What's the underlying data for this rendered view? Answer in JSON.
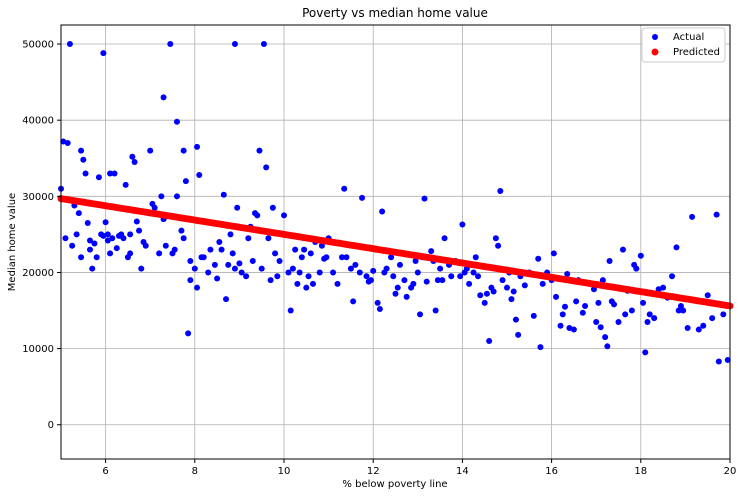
{
  "chart_data": {
    "type": "scatter",
    "title": "Poverty vs median home value",
    "xlabel": "% below poverty line",
    "ylabel": "Median home value",
    "xlim": [
      5,
      20
    ],
    "ylim": [
      -4500,
      52500
    ],
    "xticks": [
      6,
      8,
      10,
      12,
      14,
      16,
      18,
      20
    ],
    "yticks": [
      0,
      10000,
      20000,
      30000,
      40000,
      50000
    ],
    "grid": true,
    "legend_position": "top-right",
    "series": [
      {
        "name": "Actual",
        "color": "#0000ff",
        "points": [
          [
            5.0,
            31000
          ],
          [
            5.05,
            37200
          ],
          [
            5.1,
            24500
          ],
          [
            5.15,
            37000
          ],
          [
            5.2,
            50000
          ],
          [
            5.25,
            23500
          ],
          [
            5.3,
            28800
          ],
          [
            5.35,
            25000
          ],
          [
            5.4,
            27800
          ],
          [
            5.45,
            36000
          ],
          [
            5.45,
            22000
          ],
          [
            5.5,
            34800
          ],
          [
            5.55,
            33000
          ],
          [
            5.6,
            26500
          ],
          [
            5.65,
            24200
          ],
          [
            5.65,
            23000
          ],
          [
            5.7,
            20500
          ],
          [
            5.75,
            23800
          ],
          [
            5.8,
            22000
          ],
          [
            5.85,
            32500
          ],
          [
            5.9,
            25000
          ],
          [
            5.95,
            24800
          ],
          [
            6.0,
            26600
          ],
          [
            6.05,
            25000
          ],
          [
            6.1,
            22500
          ],
          [
            5.95,
            48800
          ],
          [
            6.05,
            24200
          ],
          [
            6.1,
            33000
          ],
          [
            6.15,
            24500
          ],
          [
            6.2,
            33000
          ],
          [
            6.25,
            23200
          ],
          [
            6.3,
            24800
          ],
          [
            6.35,
            25000
          ],
          [
            6.4,
            24500
          ],
          [
            6.45,
            31500
          ],
          [
            6.5,
            22000
          ],
          [
            6.55,
            22500
          ],
          [
            6.55,
            25000
          ],
          [
            6.6,
            35200
          ],
          [
            6.65,
            34500
          ],
          [
            6.7,
            26700
          ],
          [
            6.75,
            25500
          ],
          [
            6.8,
            20500
          ],
          [
            6.85,
            24000
          ],
          [
            6.9,
            23500
          ],
          [
            7.0,
            36000
          ],
          [
            7.05,
            29000
          ],
          [
            7.1,
            28500
          ],
          [
            7.2,
            22500
          ],
          [
            7.25,
            30000
          ],
          [
            7.3,
            27000
          ],
          [
            7.35,
            23500
          ],
          [
            7.3,
            43000
          ],
          [
            7.45,
            50000
          ],
          [
            7.5,
            22500
          ],
          [
            7.55,
            23000
          ],
          [
            7.6,
            39800
          ],
          [
            7.6,
            30000
          ],
          [
            7.7,
            25500
          ],
          [
            7.75,
            36000
          ],
          [
            7.75,
            24500
          ],
          [
            7.8,
            32000
          ],
          [
            7.85,
            12000
          ],
          [
            7.9,
            21500
          ],
          [
            7.9,
            19000
          ],
          [
            8.0,
            20500
          ],
          [
            8.05,
            18000
          ],
          [
            8.05,
            36500
          ],
          [
            8.1,
            32800
          ],
          [
            8.15,
            22000
          ],
          [
            8.2,
            22000
          ],
          [
            8.3,
            20000
          ],
          [
            8.35,
            23000
          ],
          [
            8.45,
            21000
          ],
          [
            8.5,
            19200
          ],
          [
            8.55,
            24000
          ],
          [
            8.6,
            23000
          ],
          [
            8.65,
            30200
          ],
          [
            8.7,
            16500
          ],
          [
            8.75,
            21000
          ],
          [
            8.8,
            25000
          ],
          [
            8.85,
            22500
          ],
          [
            8.9,
            20500
          ],
          [
            8.9,
            50000
          ],
          [
            8.95,
            28500
          ],
          [
            9.0,
            21200
          ],
          [
            9.05,
            20000
          ],
          [
            9.15,
            19500
          ],
          [
            9.2,
            24500
          ],
          [
            9.25,
            26000
          ],
          [
            9.3,
            21500
          ],
          [
            9.35,
            27800
          ],
          [
            9.4,
            27500
          ],
          [
            9.45,
            36000
          ],
          [
            9.5,
            20500
          ],
          [
            9.55,
            50000
          ],
          [
            9.6,
            33800
          ],
          [
            9.65,
            24500
          ],
          [
            9.7,
            19000
          ],
          [
            9.75,
            28500
          ],
          [
            9.8,
            22500
          ],
          [
            9.85,
            19500
          ],
          [
            9.9,
            21500
          ],
          [
            10.0,
            27500
          ],
          [
            10.1,
            20000
          ],
          [
            10.15,
            15000
          ],
          [
            10.2,
            20500
          ],
          [
            10.25,
            23000
          ],
          [
            10.3,
            18500
          ],
          [
            10.35,
            20000
          ],
          [
            10.4,
            22000
          ],
          [
            10.45,
            23000
          ],
          [
            10.5,
            18000
          ],
          [
            10.55,
            19500
          ],
          [
            10.6,
            22500
          ],
          [
            10.65,
            18500
          ],
          [
            10.7,
            24000
          ],
          [
            10.8,
            20000
          ],
          [
            10.85,
            23500
          ],
          [
            10.9,
            21800
          ],
          [
            10.95,
            22000
          ],
          [
            11.0,
            24500
          ],
          [
            11.1,
            20000
          ],
          [
            11.2,
            18500
          ],
          [
            11.3,
            22000
          ],
          [
            11.35,
            31000
          ],
          [
            11.4,
            22000
          ],
          [
            11.5,
            20500
          ],
          [
            11.55,
            16200
          ],
          [
            11.6,
            21000
          ],
          [
            11.7,
            20000
          ],
          [
            11.75,
            29800
          ],
          [
            11.85,
            19500
          ],
          [
            11.9,
            18800
          ],
          [
            11.95,
            19000
          ],
          [
            12.0,
            20200
          ],
          [
            12.05,
            23000
          ],
          [
            12.1,
            16000
          ],
          [
            12.15,
            15200
          ],
          [
            12.2,
            28000
          ],
          [
            12.25,
            20000
          ],
          [
            12.3,
            20500
          ],
          [
            12.4,
            22000
          ],
          [
            12.45,
            19500
          ],
          [
            12.5,
            17200
          ],
          [
            12.55,
            18000
          ],
          [
            12.6,
            21000
          ],
          [
            12.7,
            19000
          ],
          [
            12.75,
            16800
          ],
          [
            12.85,
            18000
          ],
          [
            12.9,
            18500
          ],
          [
            12.95,
            21500
          ],
          [
            13.0,
            20000
          ],
          [
            13.05,
            14500
          ],
          [
            13.1,
            22000
          ],
          [
            13.15,
            29700
          ],
          [
            13.2,
            18800
          ],
          [
            13.3,
            22800
          ],
          [
            13.35,
            21500
          ],
          [
            13.4,
            15000
          ],
          [
            13.45,
            19000
          ],
          [
            13.5,
            20500
          ],
          [
            13.55,
            19000
          ],
          [
            13.6,
            24500
          ],
          [
            13.7,
            21000
          ],
          [
            13.75,
            19500
          ],
          [
            13.85,
            21500
          ],
          [
            13.95,
            19500
          ],
          [
            14.0,
            26300
          ],
          [
            14.05,
            20000
          ],
          [
            14.1,
            20500
          ],
          [
            14.15,
            18500
          ],
          [
            14.2,
            21000
          ],
          [
            14.25,
            20000
          ],
          [
            14.3,
            22000
          ],
          [
            14.35,
            19500
          ],
          [
            14.4,
            17000
          ],
          [
            14.5,
            16000
          ],
          [
            14.55,
            17200
          ],
          [
            14.6,
            11000
          ],
          [
            14.65,
            18000
          ],
          [
            14.7,
            17500
          ],
          [
            14.75,
            24500
          ],
          [
            14.8,
            23500
          ],
          [
            14.85,
            30700
          ],
          [
            14.9,
            19000
          ],
          [
            15.0,
            18000
          ],
          [
            15.05,
            20000
          ],
          [
            15.1,
            16500
          ],
          [
            15.15,
            17500
          ],
          [
            15.2,
            13800
          ],
          [
            15.25,
            11800
          ],
          [
            15.3,
            19500
          ],
          [
            15.4,
            18300
          ],
          [
            15.5,
            20000
          ],
          [
            15.6,
            14300
          ],
          [
            15.7,
            21800
          ],
          [
            15.75,
            10200
          ],
          [
            15.8,
            18500
          ],
          [
            15.9,
            20000
          ],
          [
            16.0,
            19000
          ],
          [
            16.05,
            22500
          ],
          [
            16.1,
            16800
          ],
          [
            16.2,
            13000
          ],
          [
            16.25,
            14500
          ],
          [
            16.3,
            15500
          ],
          [
            16.35,
            19800
          ],
          [
            16.4,
            12700
          ],
          [
            16.5,
            12500
          ],
          [
            16.55,
            16200
          ],
          [
            16.6,
            19000
          ],
          [
            16.7,
            14700
          ],
          [
            16.75,
            15600
          ],
          [
            16.85,
            18500
          ],
          [
            16.95,
            17800
          ],
          [
            17.0,
            13500
          ],
          [
            17.05,
            16000
          ],
          [
            17.1,
            12800
          ],
          [
            17.15,
            19000
          ],
          [
            17.2,
            11500
          ],
          [
            17.25,
            10300
          ],
          [
            17.3,
            21500
          ],
          [
            17.35,
            16200
          ],
          [
            17.4,
            15800
          ],
          [
            17.5,
            13500
          ],
          [
            17.6,
            23000
          ],
          [
            17.65,
            14500
          ],
          [
            17.7,
            17600
          ],
          [
            17.8,
            15000
          ],
          [
            17.85,
            21000
          ],
          [
            17.9,
            20500
          ],
          [
            18.0,
            22200
          ],
          [
            18.05,
            16000
          ],
          [
            18.1,
            9500
          ],
          [
            18.15,
            13500
          ],
          [
            18.2,
            14500
          ],
          [
            18.3,
            14000
          ],
          [
            18.4,
            17800
          ],
          [
            18.5,
            18000
          ],
          [
            18.6,
            16700
          ],
          [
            18.7,
            19500
          ],
          [
            18.8,
            23300
          ],
          [
            18.85,
            15000
          ],
          [
            18.9,
            15600
          ],
          [
            18.95,
            15000
          ],
          [
            19.05,
            12700
          ],
          [
            19.15,
            27300
          ],
          [
            19.3,
            12500
          ],
          [
            19.4,
            13000
          ],
          [
            19.5,
            17000
          ],
          [
            19.6,
            14000
          ],
          [
            19.7,
            27600
          ],
          [
            19.75,
            8300
          ],
          [
            19.85,
            14500
          ],
          [
            19.95,
            8500
          ]
        ]
      },
      {
        "name": "Predicted",
        "color": "#ff0000",
        "line": {
          "x0": 5.0,
          "y0": 29700,
          "x1": 20.0,
          "y1": 15600
        },
        "n_points": 302
      }
    ]
  }
}
